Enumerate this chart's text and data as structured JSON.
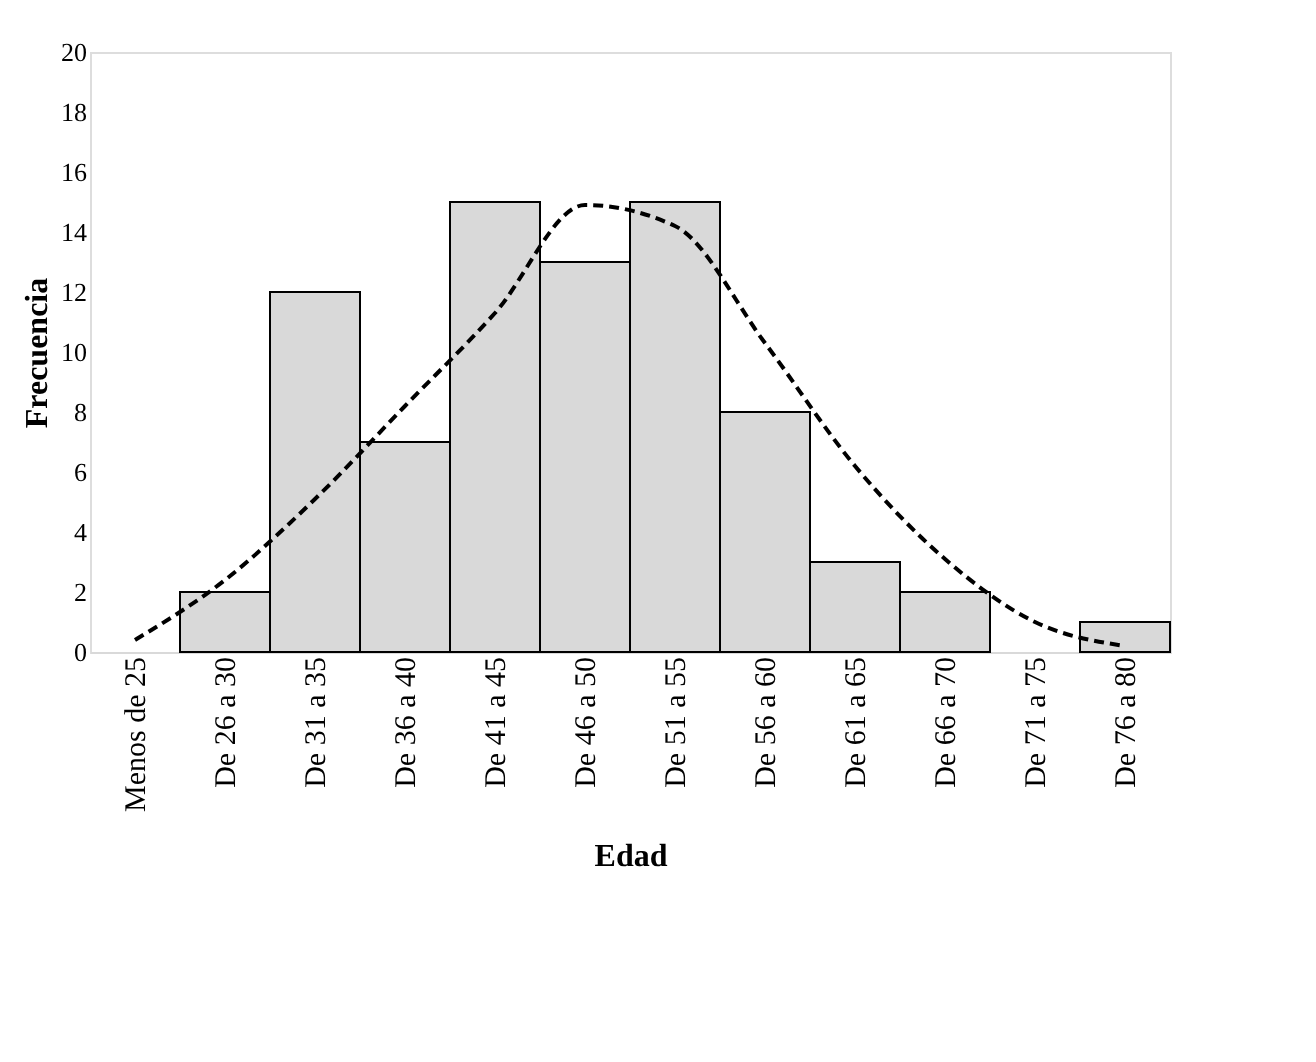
{
  "chart_data": {
    "type": "bar",
    "xlabel": "Edad",
    "ylabel": "Frecuencia",
    "categories": [
      "Menos de 25",
      "De 26 a 30",
      "De 31 a 35",
      "De 36 a 40",
      "De 41 a 45",
      "De 46 a 50",
      "De 51 a 55",
      "De 56 a 60",
      "De 61 a 65",
      "De 66 a 70",
      "De 71 a 75",
      "De 76 a 80"
    ],
    "series": [
      {
        "color": "#d9d9d9",
        "values": [
          0,
          2,
          12,
          7,
          15,
          13,
          15,
          8,
          3,
          2,
          0,
          1
        ]
      },
      {
        "type": "line",
        "color": "#000000",
        "line_style": "dashed",
        "values": [
          0.4,
          2.4,
          5.1,
          8.2,
          11.3,
          14.9,
          14.2,
          10.3,
          6.2,
          3.1,
          1.0,
          0.2
        ]
      }
    ],
    "ylim": [
      0,
      20
    ],
    "yticks": [
      0,
      2,
      4,
      6,
      8,
      10,
      12,
      14,
      16,
      18,
      20
    ],
    "grid": false
  }
}
